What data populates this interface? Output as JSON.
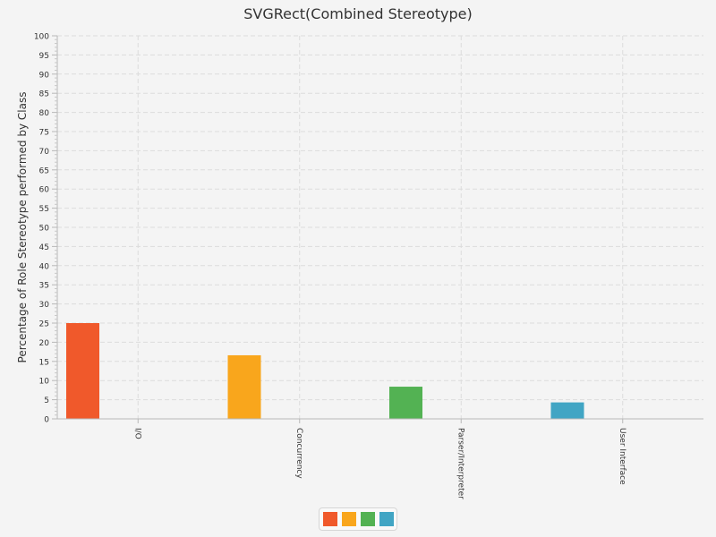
{
  "chart_data": {
    "type": "bar",
    "title": "SVGRect(Combined Stereotype)",
    "xlabel": "",
    "ylabel": "Percentage of Role Stereotype performed by Class",
    "ylim": [
      0,
      100
    ],
    "ytick_step": 5,
    "categories": [
      "I/O",
      "Concurrency",
      "Parser/Interpreter",
      "User Interface"
    ],
    "values": [
      25,
      16.6,
      8.4,
      4.3
    ],
    "colors": [
      "#f0592b",
      "#f9a61c",
      "#53b253",
      "#41a5c4"
    ],
    "grid": true,
    "legend": {
      "placement": "bottom-center"
    }
  }
}
